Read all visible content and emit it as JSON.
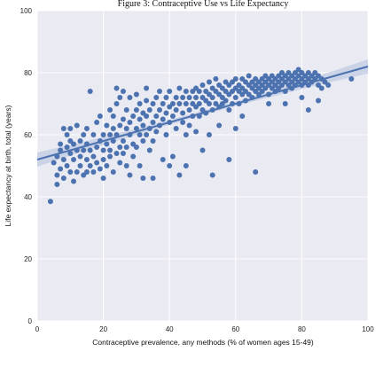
{
  "chart_data": {
    "type": "scatter",
    "title": "Figure 3: Contraceptive Use vs Life Expectancy",
    "xlabel": "Contraceptive prevalence, any methods (% of women ages 15-49)",
    "ylabel": "Life expectancy at birth, total (years)",
    "xlim": [
      0,
      100
    ],
    "ylim": [
      0,
      100
    ],
    "xticks": [
      "0",
      "20",
      "40",
      "60",
      "80",
      "100"
    ],
    "yticks": [
      "0",
      "20",
      "40",
      "60",
      "80",
      "100"
    ],
    "grid": true,
    "colors": {
      "background": "#EAEAF2",
      "grid": "#FFFFFF",
      "points": "#4C72B0",
      "band": "#C3CDE4"
    },
    "regression": {
      "x": [
        0,
        100
      ],
      "y": [
        52.0,
        82.0
      ]
    },
    "points": [
      [
        4,
        38.5
      ],
      [
        5,
        51
      ],
      [
        6,
        53
      ],
      [
        6,
        47
      ],
      [
        6,
        44
      ],
      [
        7,
        55
      ],
      [
        7,
        49
      ],
      [
        7,
        57
      ],
      [
        8,
        46
      ],
      [
        8,
        52
      ],
      [
        8,
        62
      ],
      [
        9,
        50
      ],
      [
        9,
        56
      ],
      [
        9,
        60
      ],
      [
        10,
        54
      ],
      [
        10,
        48
      ],
      [
        10,
        58
      ],
      [
        10,
        62
      ],
      [
        11,
        52
      ],
      [
        11,
        45
      ],
      [
        11,
        57
      ],
      [
        12,
        55
      ],
      [
        12,
        48
      ],
      [
        12,
        63
      ],
      [
        13,
        50
      ],
      [
        13,
        58
      ],
      [
        13,
        53
      ],
      [
        14,
        60
      ],
      [
        14,
        47
      ],
      [
        14,
        55
      ],
      [
        15,
        48
      ],
      [
        15,
        52
      ],
      [
        15,
        57
      ],
      [
        15,
        62
      ],
      [
        16,
        74
      ],
      [
        16,
        50
      ],
      [
        16,
        55
      ],
      [
        17,
        48
      ],
      [
        17,
        60
      ],
      [
        17,
        53
      ],
      [
        18,
        51
      ],
      [
        18,
        56
      ],
      [
        18,
        64
      ],
      [
        19,
        49
      ],
      [
        19,
        58
      ],
      [
        19,
        66
      ],
      [
        20,
        52
      ],
      [
        20,
        60
      ],
      [
        20,
        55
      ],
      [
        20,
        46
      ],
      [
        21,
        57
      ],
      [
        21,
        63
      ],
      [
        21,
        50
      ],
      [
        22,
        55
      ],
      [
        22,
        68
      ],
      [
        22,
        60
      ],
      [
        22,
        53
      ],
      [
        23,
        58
      ],
      [
        23,
        62
      ],
      [
        23,
        66
      ],
      [
        23,
        48
      ],
      [
        24,
        54
      ],
      [
        24,
        60
      ],
      [
        24,
        70
      ],
      [
        24,
        75
      ],
      [
        25,
        56
      ],
      [
        25,
        63
      ],
      [
        25,
        51
      ],
      [
        25,
        72
      ],
      [
        26,
        58
      ],
      [
        26,
        65
      ],
      [
        26,
        54
      ],
      [
        26,
        74
      ],
      [
        27,
        62
      ],
      [
        27,
        56
      ],
      [
        27,
        68
      ],
      [
        27,
        50
      ],
      [
        28,
        60
      ],
      [
        28,
        64
      ],
      [
        28,
        72
      ],
      [
        28,
        47
      ],
      [
        29,
        57
      ],
      [
        29,
        66
      ],
      [
        29,
        53
      ],
      [
        30,
        62
      ],
      [
        30,
        68
      ],
      [
        30,
        73
      ],
      [
        30,
        56
      ],
      [
        31,
        60
      ],
      [
        31,
        65
      ],
      [
        31,
        70
      ],
      [
        31,
        50
      ],
      [
        32,
        63
      ],
      [
        32,
        67
      ],
      [
        32,
        58
      ],
      [
        32,
        46
      ],
      [
        33,
        66
      ],
      [
        33,
        71
      ],
      [
        33,
        60
      ],
      [
        33,
        75
      ],
      [
        34,
        62
      ],
      [
        34,
        68
      ],
      [
        34,
        55
      ],
      [
        35,
        64
      ],
      [
        35,
        70
      ],
      [
        35,
        58
      ],
      [
        35,
        46
      ],
      [
        36,
        66
      ],
      [
        36,
        72
      ],
      [
        36,
        61
      ],
      [
        37,
        68
      ],
      [
        37,
        74
      ],
      [
        37,
        63
      ],
      [
        38,
        65
      ],
      [
        38,
        70
      ],
      [
        38,
        52
      ],
      [
        39,
        67
      ],
      [
        39,
        72
      ],
      [
        39,
        60
      ],
      [
        40,
        69
      ],
      [
        40,
        64
      ],
      [
        40,
        74
      ],
      [
        40,
        50
      ],
      [
        41,
        70
      ],
      [
        41,
        66
      ],
      [
        41,
        53
      ],
      [
        42,
        68
      ],
      [
        42,
        72
      ],
      [
        42,
        62
      ],
      [
        43,
        70
      ],
      [
        43,
        75
      ],
      [
        43,
        47
      ],
      [
        44,
        67
      ],
      [
        44,
        72
      ],
      [
        44,
        64
      ],
      [
        45,
        70
      ],
      [
        45,
        74
      ],
      [
        45,
        60
      ],
      [
        45,
        50
      ],
      [
        46,
        68
      ],
      [
        46,
        72
      ],
      [
        46,
        63
      ],
      [
        47,
        70
      ],
      [
        47,
        74
      ],
      [
        47,
        66
      ],
      [
        48,
        72
      ],
      [
        48,
        69
      ],
      [
        48,
        75
      ],
      [
        48,
        61
      ],
      [
        49,
        70
      ],
      [
        49,
        74
      ],
      [
        49,
        66
      ],
      [
        50,
        72
      ],
      [
        50,
        68
      ],
      [
        50,
        76
      ],
      [
        50,
        55
      ],
      [
        51,
        71
      ],
      [
        51,
        74
      ],
      [
        51,
        67
      ],
      [
        52,
        73
      ],
      [
        52,
        70
      ],
      [
        52,
        77
      ],
      [
        52,
        60
      ],
      [
        53,
        72
      ],
      [
        53,
        75
      ],
      [
        53,
        68
      ],
      [
        53,
        47
      ],
      [
        54,
        74
      ],
      [
        54,
        70
      ],
      [
        54,
        78
      ],
      [
        55,
        73
      ],
      [
        55,
        76
      ],
      [
        55,
        69
      ],
      [
        55,
        63
      ],
      [
        56,
        72
      ],
      [
        56,
        75
      ],
      [
        56,
        70
      ],
      [
        57,
        74
      ],
      [
        57,
        77
      ],
      [
        57,
        71
      ],
      [
        58,
        73
      ],
      [
        58,
        76
      ],
      [
        58,
        68
      ],
      [
        58,
        52
      ],
      [
        59,
        74
      ],
      [
        59,
        77
      ],
      [
        59,
        70
      ],
      [
        60,
        75
      ],
      [
        60,
        72
      ],
      [
        60,
        78
      ],
      [
        60,
        62
      ],
      [
        61,
        74
      ],
      [
        61,
        76
      ],
      [
        61,
        70
      ],
      [
        62,
        75
      ],
      [
        62,
        73
      ],
      [
        62,
        78
      ],
      [
        62,
        66
      ],
      [
        63,
        74
      ],
      [
        63,
        77
      ],
      [
        63,
        71
      ],
      [
        64,
        76
      ],
      [
        64,
        73
      ],
      [
        64,
        79
      ],
      [
        65,
        75
      ],
      [
        65,
        77
      ],
      [
        65,
        72
      ],
      [
        66,
        76
      ],
      [
        66,
        74
      ],
      [
        66,
        78
      ],
      [
        66,
        48
      ],
      [
        67,
        77
      ],
      [
        67,
        75
      ],
      [
        67,
        73
      ],
      [
        68,
        76
      ],
      [
        68,
        78
      ],
      [
        68,
        74
      ],
      [
        69,
        77
      ],
      [
        69,
        75
      ],
      [
        69,
        79
      ],
      [
        70,
        76
      ],
      [
        70,
        78
      ],
      [
        70,
        73
      ],
      [
        70,
        70
      ],
      [
        71,
        77
      ],
      [
        71,
        75
      ],
      [
        71,
        79
      ],
      [
        72,
        78
      ],
      [
        72,
        76
      ],
      [
        72,
        74
      ],
      [
        73,
        77
      ],
      [
        73,
        79
      ],
      [
        73,
        75
      ],
      [
        74,
        78
      ],
      [
        74,
        76
      ],
      [
        74,
        80
      ],
      [
        75,
        77
      ],
      [
        75,
        79
      ],
      [
        75,
        74
      ],
      [
        76,
        78
      ],
      [
        76,
        76
      ],
      [
        76,
        80
      ],
      [
        77,
        77
      ],
      [
        77,
        79
      ],
      [
        77,
        75
      ],
      [
        78,
        78
      ],
      [
        78,
        76
      ],
      [
        78,
        80
      ],
      [
        79,
        79
      ],
      [
        79,
        77
      ],
      [
        79,
        81
      ],
      [
        80,
        78
      ],
      [
        80,
        76
      ],
      [
        80,
        80
      ],
      [
        81,
        79
      ],
      [
        81,
        77
      ],
      [
        82,
        80
      ],
      [
        82,
        78
      ],
      [
        82,
        76
      ],
      [
        83,
        79
      ],
      [
        83,
        77
      ],
      [
        84,
        80
      ],
      [
        84,
        78
      ],
      [
        85,
        79
      ],
      [
        85,
        76
      ],
      [
        86,
        78
      ],
      [
        86,
        75
      ],
      [
        87,
        77
      ],
      [
        88,
        76
      ],
      [
        82,
        68
      ],
      [
        85,
        71
      ],
      [
        80,
        72
      ],
      [
        75,
        70
      ],
      [
        95,
        78
      ]
    ]
  }
}
